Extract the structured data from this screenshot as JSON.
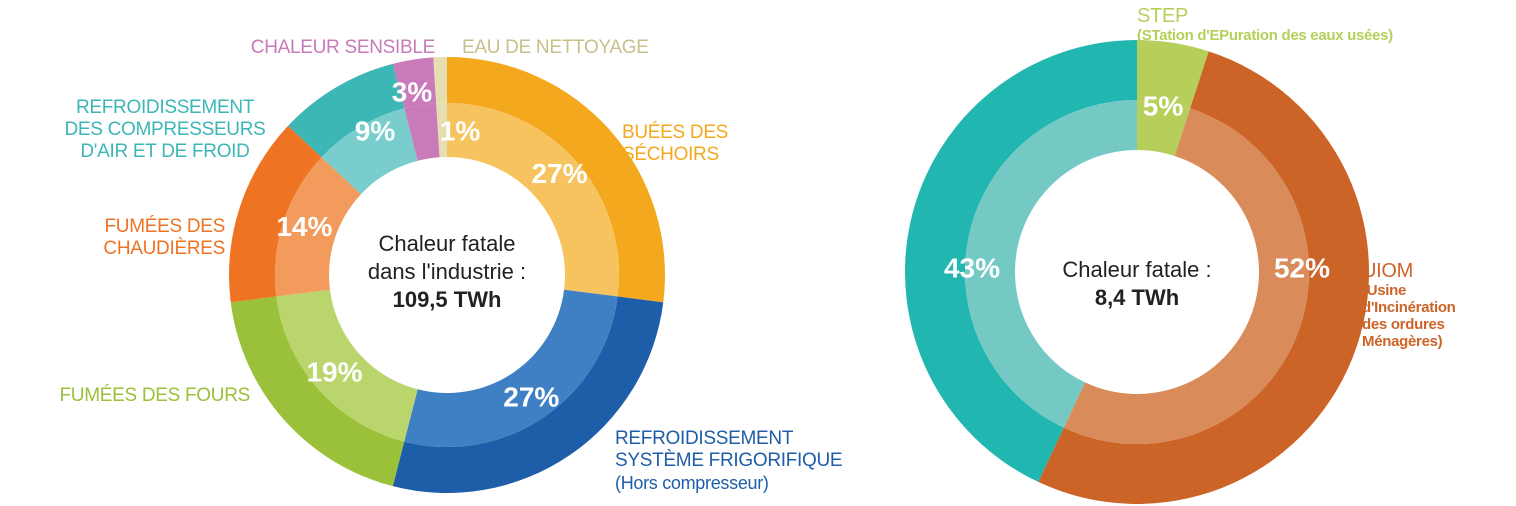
{
  "chart_data": [
    {
      "type": "pie",
      "categories": [
        "BUÉES DES\nSÉCHOIRS",
        "REFROIDISSEMENT\nSYSTÈME FRIGORIFIQUE",
        "FUMÉES DES FOURS",
        "FUMÉES DES\nCHAUDIÈRES",
        "REFROIDISSEMENT\nDES COMPRESSEURS\nD'AIR ET DE FROID",
        "CHALEUR SENSIBLE",
        "EAU DE NETTOYAGE"
      ],
      "category_notes": [
        null,
        "(Hors compresseur)",
        null,
        null,
        null,
        null,
        null
      ],
      "values": [
        27,
        27,
        19,
        14,
        9,
        3,
        1
      ],
      "value_labels": [
        "27%",
        "27%",
        "19%",
        "14%",
        "9%",
        "3%",
        "1%"
      ],
      "colors": [
        "#f4a81d",
        "#1e5ea8",
        "#9bc13b",
        "#ee7424",
        "#3db6b6",
        "#c87ab9",
        "#e6ddb0"
      ],
      "inner_colors": [
        "#f7c35e",
        "#3e80c3",
        "#b9d56c",
        "#f29b5d",
        "#79cdcc",
        "#c87ab9",
        "#e6ddb0"
      ],
      "center_label": "Chaleur fatale\ndans l'industrie :",
      "center_value": "109,5 TWh"
    },
    {
      "type": "pie",
      "categories": [
        "STEP",
        "UIOM",
        null
      ],
      "category_notes": [
        "(STation d'EPuration des eaux usées)",
        "(Usine\nd'Incinération\ndes ordures\nMénagères)",
        null
      ],
      "values": [
        5,
        52,
        43
      ],
      "value_labels": [
        "5%",
        "52%",
        "43%"
      ],
      "colors": [
        "#b6cf5b",
        "#cc6428",
        "#22b6b0"
      ],
      "inner_colors": [
        "#b6cf5b",
        "#d98b5a",
        "#74c9c5"
      ],
      "center_label": "Chaleur fatale :",
      "center_value": "8,4 TWh"
    }
  ]
}
